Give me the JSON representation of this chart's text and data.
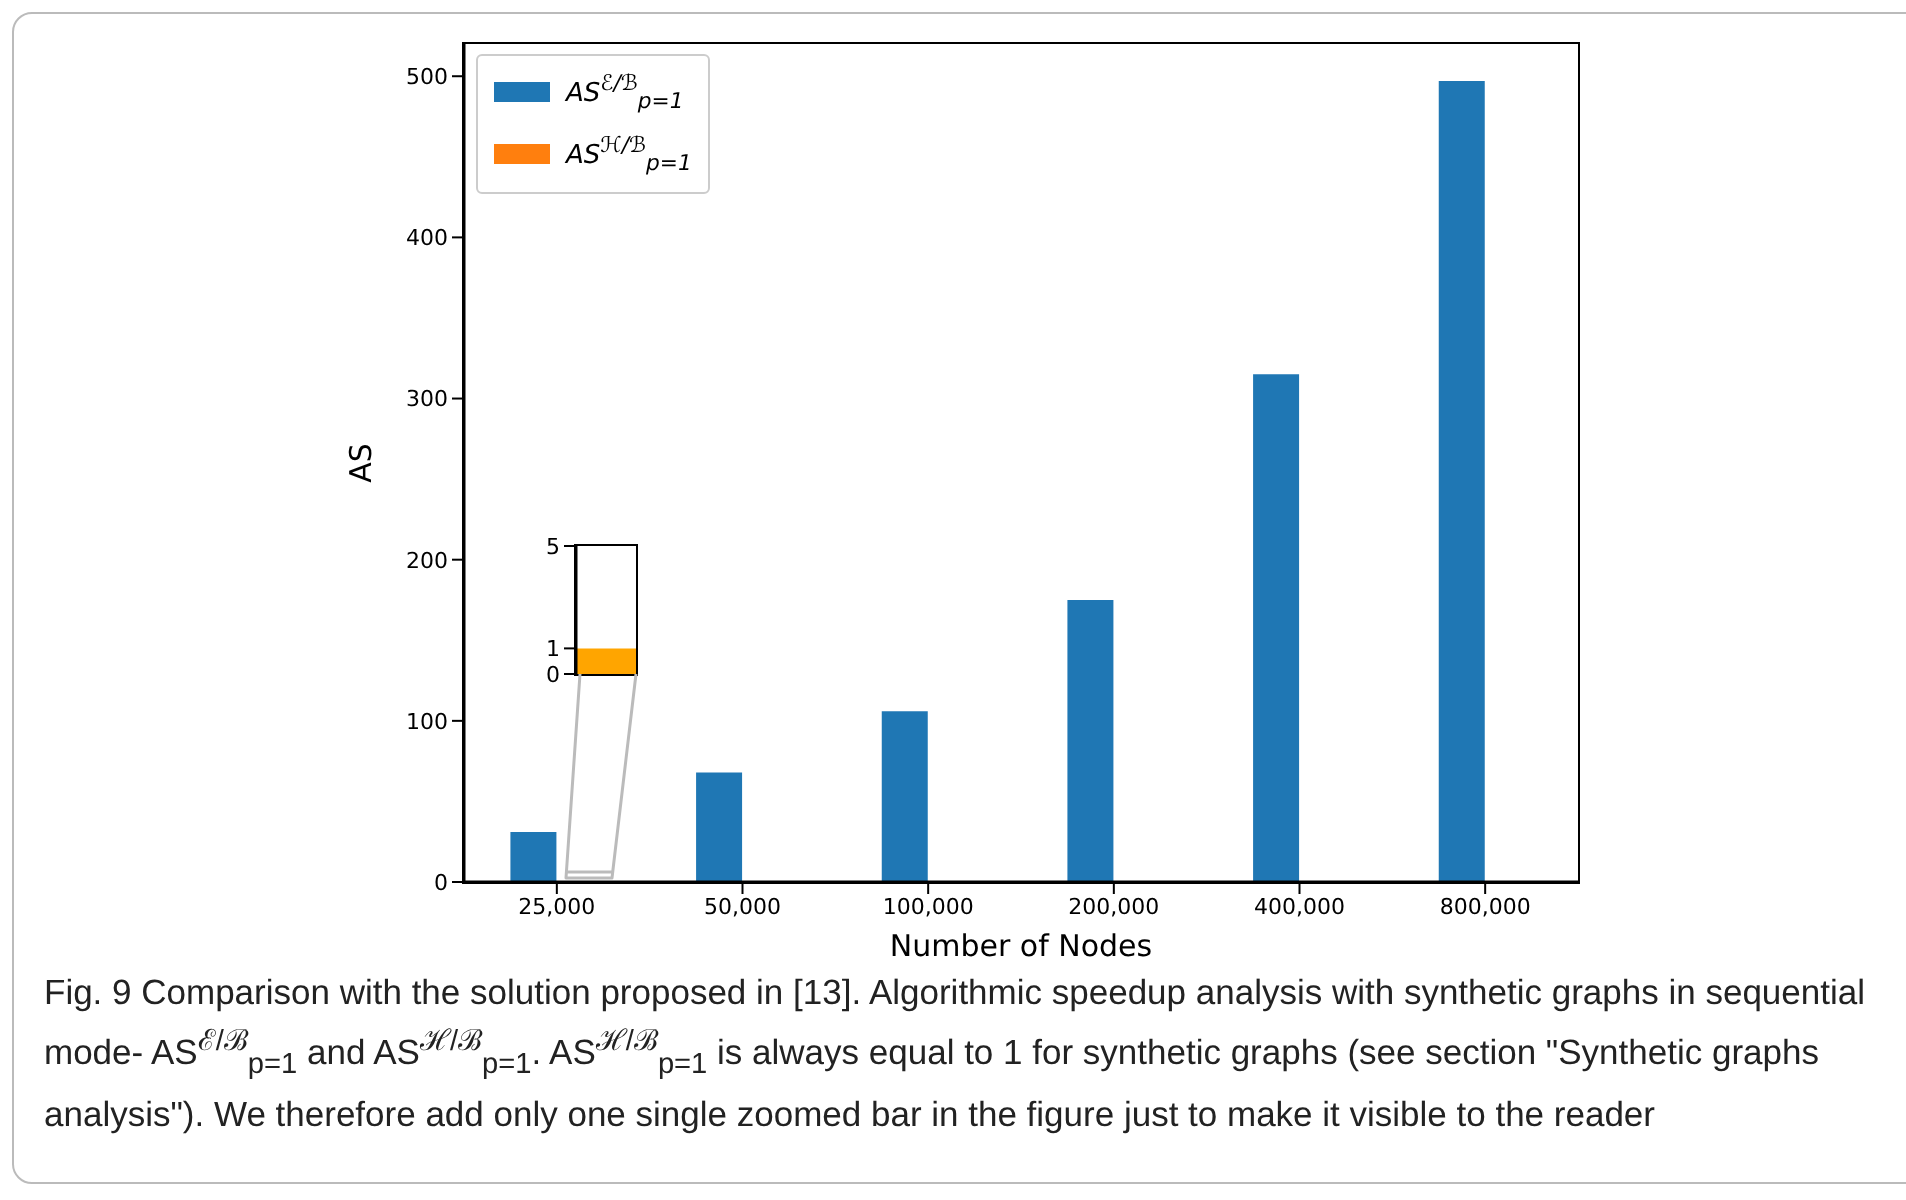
{
  "chart_data": [
    {
      "type": "bar",
      "xlabel": "Number of Nodes",
      "ylabel": "AS",
      "categories": [
        "25,000",
        "50,000",
        "100,000",
        "200,000",
        "400,000",
        "800,000"
      ],
      "series": [
        {
          "name": "AS$^{ℰ/ℬ}$$_{p=1}$",
          "color": "#1f77b4",
          "values": [
            31,
            68,
            106,
            175,
            315,
            497
          ]
        },
        {
          "name": "AS$^{ℋ/ℬ}$$_{p=1}$",
          "color": "#ff7f0e",
          "values": [
            null,
            null,
            null,
            null,
            null,
            null
          ]
        }
      ],
      "ylim": [
        0,
        520
      ],
      "yticks": [
        0,
        100,
        200,
        300,
        400,
        500
      ],
      "grid": false,
      "legend": "top left",
      "annotations": [
        "Fig. 9 Comparison with the solution proposed in [13]. Algorithmic speedup analysis with synthetic graphs in sequential mode- AS$^{ℰ/ℬ}$$_{p=1}$ and AS$^{ℋ/ℬ}$$_{p=1}$. AS$^{ℋ/ℬ}$$_{p=1}$ is always equal to 1 for synthetic graphs (see section \"Synthetic graphs analysis\"). We therefore add only one single zoomed bar in the figure just to make it visible to the reader"
      ]
    },
    {
      "type": "bar",
      "categories": [
        null
      ],
      "series": [
        {
          "color": "#ffa500",
          "values": [
            1
          ]
        }
      ],
      "ylim": [
        0,
        5
      ],
      "yticks": [
        0,
        1,
        5
      ],
      "tick_labels": "y"
    }
  ]
}
